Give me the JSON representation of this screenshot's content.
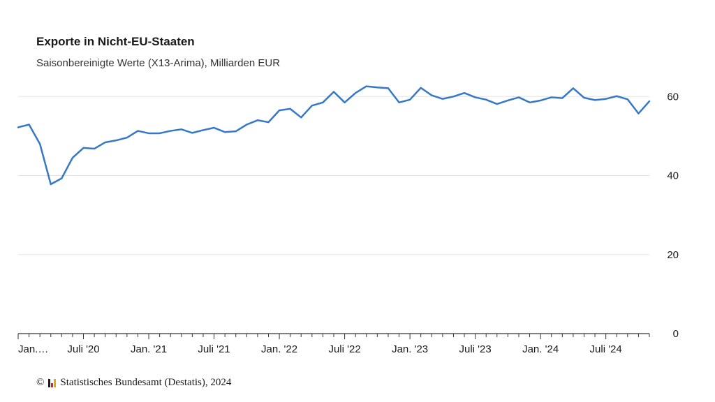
{
  "chart_data": {
    "type": "line",
    "title": "Exporte in Nicht-EU-Staaten",
    "subtitle": "Saisonbereinigte Werte (X13-Arima), Milliarden EUR",
    "ylim": [
      0,
      65
    ],
    "yticks": [
      0,
      20,
      40,
      60
    ],
    "x_tick_labels": [
      "Jan.…",
      "Juli '20",
      "Jan. '21",
      "Juli '21",
      "Jan. '22",
      "Juli '22",
      "Jan. '23",
      "Juli '23",
      "Jan. '24",
      "Juli '24"
    ],
    "x_tick_label_index": [
      0,
      6,
      12,
      18,
      24,
      30,
      36,
      42,
      48,
      54
    ],
    "grid": true,
    "line_color": "#3478c6",
    "series": [
      {
        "values": [
          52.2,
          52.9,
          48.0,
          37.8,
          39.3,
          44.5,
          47.0,
          46.8,
          48.4,
          48.9,
          49.6,
          51.3,
          50.7,
          50.7,
          51.3,
          51.7,
          50.8,
          51.5,
          52.1,
          51.0,
          51.2,
          52.9,
          54.0,
          53.5,
          56.5,
          56.9,
          54.7,
          57.7,
          58.5,
          61.2,
          58.5,
          60.9,
          62.6,
          62.3,
          62.1,
          58.5,
          59.2,
          62.2,
          60.3,
          59.4,
          60.0,
          60.9,
          59.8,
          59.2,
          58.1,
          59.0,
          59.8,
          58.5,
          59.0,
          59.8,
          59.6,
          62.1,
          59.7,
          59.1,
          59.4,
          60.1,
          59.3,
          55.7,
          58.8
        ]
      }
    ]
  },
  "footer": {
    "copyright_symbol": "©",
    "source": "Statistisches Bundesamt (Destatis), 2024"
  }
}
